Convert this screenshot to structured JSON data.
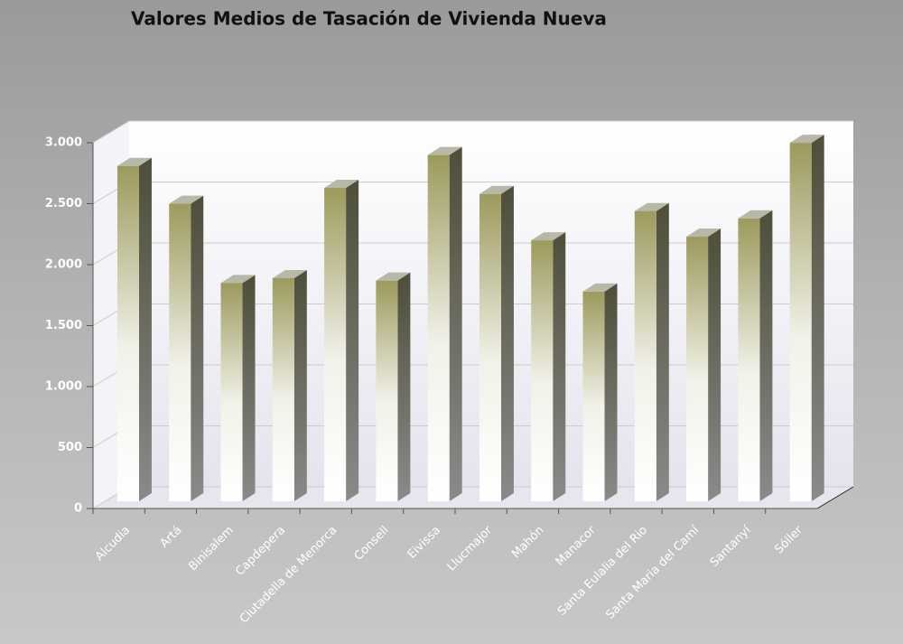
{
  "chart_data": {
    "type": "bar3d",
    "title": "Valores Medios de Tasación de Vivienda Nueva",
    "categories": [
      "Alcudia",
      "Artá",
      "Binisalem",
      "Capdepera",
      "Ciutadella de Menorca",
      "Consell",
      "Eivissa",
      "Llucmajor",
      "Mahón",
      "Manacor",
      "Santa Eulalia del Rio",
      "Santa Maria del Camí",
      "Santanyí",
      "Sóller"
    ],
    "values": [
      2750,
      2440,
      1790,
      1830,
      2570,
      1810,
      2840,
      2520,
      2140,
      1720,
      2380,
      2170,
      2320,
      2940
    ],
    "color": "#9c9a5c",
    "ylim": [
      0,
      3000
    ],
    "yticks": [
      0,
      500,
      {
        "value": 1000,
        "label": "1.000"
      },
      {
        "value": 1500,
        "label": "1.500"
      },
      {
        "value": 2000,
        "label": "2.000"
      },
      {
        "value": 2500,
        "label": "2.500"
      },
      {
        "value": 3000,
        "label": "3.000"
      }
    ],
    "grid": true
  }
}
